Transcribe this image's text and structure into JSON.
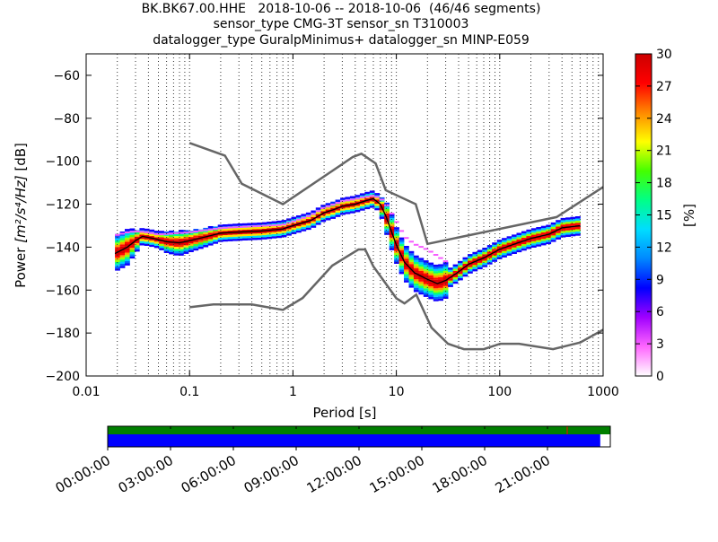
{
  "header": {
    "title_lines": [
      "BK.BK67.00.HHE   2018-10-06 -- 2018-10-06  (46/46 segments)",
      "sensor_type CMG-3T sensor_sn T310003",
      "datalogger_type GuralpMinimus+ datalogger_sn MINP-E059"
    ]
  },
  "chart_data": [
    {
      "type": "heatmap",
      "xlabel": "Period [s]",
      "ylabel_prefix": "Power ",
      "ylabel_unit": "[m²/s⁴/Hz]",
      "ylabel_suffix": " [dB]",
      "x_scale": "log",
      "xlim": [
        0.01,
        1000
      ],
      "ylim": [
        -200,
        -50
      ],
      "x_ticks": [
        0.01,
        0.1,
        1,
        10,
        100,
        1000
      ],
      "x_tick_labels": [
        "0.01",
        "0.1",
        "1",
        "10",
        "100",
        "1000"
      ],
      "y_ticks": [
        -200,
        -180,
        -160,
        -140,
        -120,
        -100,
        -80,
        -60
      ],
      "y_tick_labels": [
        "−200",
        "−180",
        "−160",
        "−140",
        "−120",
        "−100",
        "−80",
        "−60"
      ],
      "grid": "dotted vertical lines",
      "colorbar": {
        "label": "[%]",
        "range": [
          0,
          30
        ],
        "ticks": [
          0,
          3,
          6,
          9,
          12,
          15,
          18,
          21,
          24,
          27,
          30
        ],
        "tick_labels": [
          "0",
          "3",
          "6",
          "9",
          "12",
          "15",
          "18",
          "21",
          "24",
          "27",
          "30"
        ],
        "colormap": [
          "#ffffff",
          "#ff66ff",
          "#a000ff",
          "#0000ff",
          "#0088ff",
          "#00ddff",
          "#00ff88",
          "#44ff00",
          "#ffff00",
          "#ff8800",
          "#ff0000",
          "#cc0000"
        ]
      },
      "high_noise_model": {
        "x": [
          0.1,
          0.22,
          0.32,
          0.8,
          3.8,
          4.6,
          6.3,
          7.9,
          15.4,
          20,
          354.8,
          1000
        ],
        "y": [
          -91.5,
          -97.4,
          -110.5,
          -120,
          -98,
          -96.5,
          -101,
          -113.5,
          -120,
          -138.5,
          -126,
          -112
        ]
      },
      "low_noise_model": {
        "x": [
          0.1,
          0.17,
          0.4,
          0.8,
          1.24,
          2.4,
          4.3,
          5,
          6,
          10,
          12,
          15.6,
          21.9,
          31.6,
          45,
          70,
          101,
          154,
          328,
          600,
          1000
        ],
        "y": [
          -168,
          -166.7,
          -166.7,
          -169.2,
          -163.7,
          -148.6,
          -141.1,
          -141.1,
          -149,
          -163.8,
          -166.2,
          -162.1,
          -177.5,
          -185,
          -187.5,
          -187.5,
          -185,
          -185,
          -187.5,
          -184.4,
          -178.5
        ]
      },
      "median_curve": {
        "x": [
          0.019,
          0.025,
          0.03,
          0.035,
          0.045,
          0.06,
          0.08,
          0.1,
          0.15,
          0.2,
          0.3,
          0.5,
          0.8,
          1,
          1.5,
          2,
          2.5,
          3,
          4,
          5,
          6,
          7,
          8,
          10,
          12,
          15,
          20,
          25,
          30,
          40,
          50,
          70,
          100,
          150,
          200,
          300,
          400,
          600
        ],
        "y": [
          -143,
          -140,
          -137,
          -135,
          -136,
          -137.5,
          -138,
          -137,
          -135,
          -133.5,
          -133,
          -132.5,
          -131.5,
          -130,
          -127.5,
          -124,
          -122.5,
          -121,
          -120,
          -118.5,
          -117.5,
          -120,
          -126,
          -139,
          -147,
          -152,
          -155,
          -157,
          -155.5,
          -151.5,
          -148,
          -145,
          -141,
          -138,
          -136,
          -134,
          -131,
          -130
        ]
      },
      "upper_percentile": {
        "x": [
          0.019,
          0.025,
          0.03,
          0.04,
          0.05,
          0.07,
          0.1,
          0.2,
          0.3,
          0.5,
          0.8,
          1,
          1.5,
          2,
          3,
          4,
          5,
          6,
          7,
          8,
          10,
          12,
          15,
          20,
          25,
          30
        ],
        "y": [
          -134.5,
          -133,
          -132.5,
          -133,
          -134,
          -133.5,
          -133,
          -131,
          -130.5,
          -130,
          -129.5,
          -128,
          -125,
          -121.5,
          -118.5,
          -117.5,
          -116.5,
          -116,
          -117,
          -120,
          -128,
          -135,
          -138.5,
          -141,
          -144,
          -146.5
        ]
      },
      "x_axis_time_labels": [
        "00:00:00",
        "03:00:00",
        "06:00:00",
        "09:00:00",
        "12:00:00",
        "15:00:00",
        "18:00:00",
        "21:00:00"
      ],
      "data_availability": {
        "top_bar_color": "#007f00",
        "bottom_bar_color": "#0000ff",
        "gap_marker_color": "#ff0000",
        "coverage_fraction": 0.98
      }
    }
  ]
}
